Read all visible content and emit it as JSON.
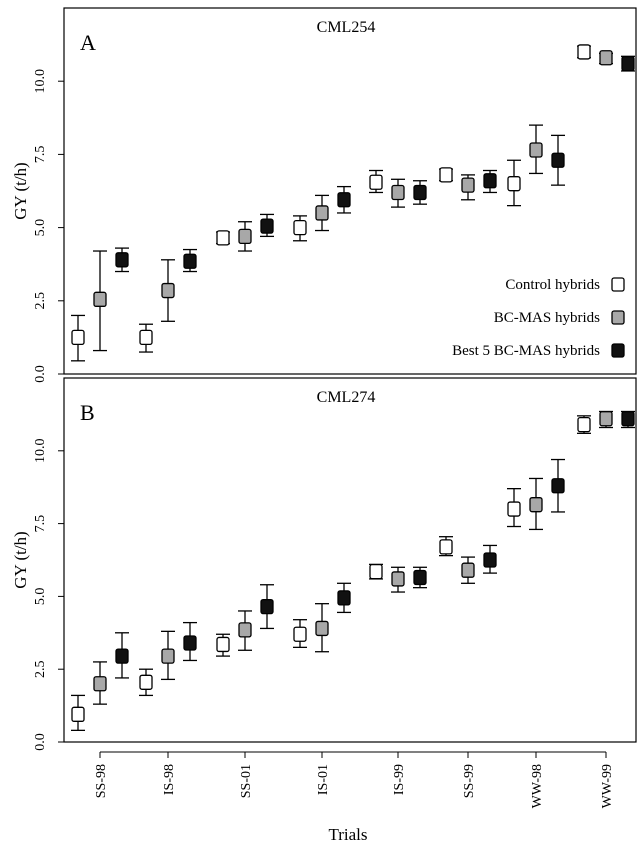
{
  "figure": {
    "xlabel": "Trials",
    "ylabel": "GY (t/h)"
  },
  "legend": {
    "items": [
      {
        "label": "Control hybrids",
        "color": "#ffffff"
      },
      {
        "label": "BC-MAS hybrids",
        "color": "#a8a8a8"
      },
      {
        "label": "Best 5 BC-MAS hybrids",
        "color": "#111111"
      }
    ]
  },
  "chart_data": [
    {
      "type": "scatter",
      "panel_letter": "A",
      "title": "CML254",
      "ylabel": "GY (t/h)",
      "ylim": [
        0,
        12.5
      ],
      "yticks": [
        "0.0",
        "2.5",
        "5.0",
        "7.5",
        "10.0"
      ],
      "categories": [
        "SS-98",
        "IS-98",
        "SS-01",
        "IS-01",
        "IS-99",
        "SS-99",
        "WW-98",
        "WW-99"
      ],
      "series": [
        {
          "name": "Control hybrids",
          "color": "#ffffff",
          "values": [
            1.25,
            1.25,
            4.65,
            5.0,
            6.55,
            6.8,
            6.5,
            11.0
          ],
          "lower": [
            0.45,
            0.75,
            4.45,
            4.55,
            6.2,
            6.6,
            5.75,
            10.8
          ],
          "upper": [
            2.0,
            1.7,
            4.85,
            5.4,
            6.95,
            7.0,
            7.3,
            11.2
          ]
        },
        {
          "name": "BC-MAS hybrids",
          "color": "#a8a8a8",
          "values": [
            2.55,
            2.85,
            4.7,
            5.5,
            6.2,
            6.45,
            7.65,
            10.8
          ],
          "lower": [
            0.8,
            1.8,
            4.2,
            4.9,
            5.7,
            5.95,
            6.85,
            10.6
          ],
          "upper": [
            4.2,
            3.9,
            5.2,
            6.1,
            6.65,
            6.8,
            8.5,
            10.95
          ]
        },
        {
          "name": "Best 5 BC-MAS hybrids",
          "color": "#111111",
          "values": [
            3.9,
            3.85,
            5.05,
            5.95,
            6.2,
            6.6,
            7.3,
            10.6
          ],
          "lower": [
            3.5,
            3.5,
            4.7,
            5.5,
            5.8,
            6.2,
            6.45,
            10.35
          ],
          "upper": [
            4.3,
            4.25,
            5.45,
            6.4,
            6.6,
            6.95,
            8.15,
            10.85
          ]
        }
      ]
    },
    {
      "type": "scatter",
      "panel_letter": "B",
      "title": "CML274",
      "ylabel": "GY (t/h)",
      "ylim": [
        0,
        12.5
      ],
      "yticks": [
        "0.0",
        "2.5",
        "5.0",
        "7.5",
        "10.0"
      ],
      "categories": [
        "SS-98",
        "IS-98",
        "SS-01",
        "IS-01",
        "IS-99",
        "SS-99",
        "WW-98",
        "WW-99"
      ],
      "series": [
        {
          "name": "Control hybrids",
          "color": "#ffffff",
          "values": [
            0.95,
            2.05,
            3.35,
            3.7,
            5.85,
            6.7,
            8.0,
            10.9
          ],
          "lower": [
            0.4,
            1.6,
            2.95,
            3.25,
            5.6,
            6.4,
            7.4,
            10.6
          ],
          "upper": [
            1.6,
            2.5,
            3.7,
            4.2,
            6.1,
            7.05,
            8.7,
            11.2
          ]
        },
        {
          "name": "BC-MAS hybrids",
          "color": "#a8a8a8",
          "values": [
            2.0,
            2.95,
            3.85,
            3.9,
            5.6,
            5.9,
            8.15,
            11.1
          ],
          "lower": [
            1.3,
            2.15,
            3.15,
            3.1,
            5.15,
            5.45,
            7.3,
            10.8
          ],
          "upper": [
            2.75,
            3.8,
            4.5,
            4.75,
            6.0,
            6.35,
            9.05,
            11.35
          ]
        },
        {
          "name": "Best 5 BC-MAS hybrids",
          "color": "#111111",
          "values": [
            2.95,
            3.4,
            4.65,
            4.95,
            5.65,
            6.25,
            8.8,
            11.1
          ],
          "lower": [
            2.2,
            2.8,
            3.9,
            4.45,
            5.3,
            5.8,
            7.9,
            10.8
          ],
          "upper": [
            3.75,
            4.1,
            5.4,
            5.45,
            6.0,
            6.75,
            9.7,
            11.35
          ]
        }
      ]
    }
  ]
}
